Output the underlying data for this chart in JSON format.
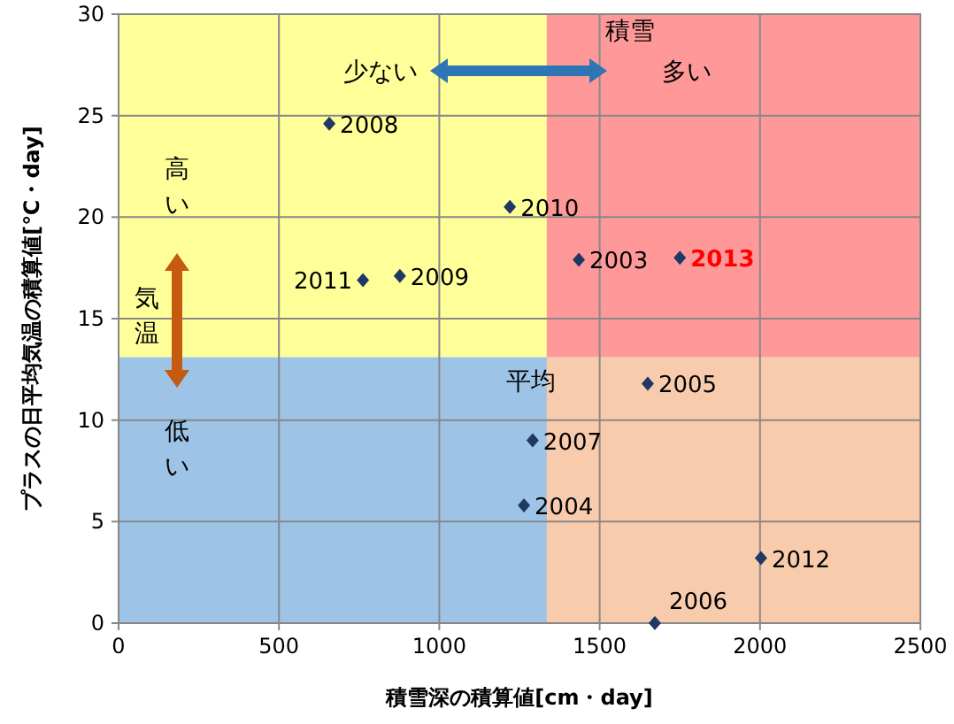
{
  "chart_data": {
    "type": "scatter",
    "xlabel": "積雪深の積算値[cm・day]",
    "ylabel": "プラスの日平均気温の積算値[℃・day]",
    "xlim": [
      0,
      2500
    ],
    "xticks": [
      0,
      500,
      1000,
      1500,
      2000,
      2500
    ],
    "ylim": [
      0,
      30
    ],
    "yticks": [
      0,
      5,
      10,
      15,
      20,
      25,
      30
    ],
    "grid": true,
    "marker": "diamond",
    "bands": [
      {
        "axis": "y",
        "from": 13.1,
        "to": 30,
        "color": "#ffff99"
      },
      {
        "axis": "y",
        "from": 0,
        "to": 13.1,
        "color": "#9dc3e6"
      },
      {
        "axis": "x",
        "from": 1335,
        "to": 2500,
        "color": "#ff9999"
      },
      {
        "axis": "x",
        "from": 1335,
        "to": 2500,
        "color": "#f8cbad"
      }
    ],
    "series": [
      {
        "color": "#1f3864",
        "x": [
          657,
          1220,
          1435,
          762,
          877,
          1650,
          1291,
          1264,
          2003,
          1672,
          1750
        ],
        "values": [
          24.6,
          20.5,
          17.9,
          16.9,
          17.1,
          11.8,
          9.0,
          5.8,
          3.2,
          0,
          18.0
        ]
      }
    ],
    "annotations": [
      "積雪",
      "少ない",
      "多い",
      "高い",
      "気温",
      "低い",
      "平均",
      {
        "text": "2008",
        "x": 657,
        "y": 24.6
      },
      {
        "text": "2010",
        "x": 1220,
        "y": 20.5
      },
      {
        "text": "2003",
        "x": 1435,
        "y": 17.9
      },
      {
        "text": "2011",
        "x": 762,
        "y": 16.9
      },
      {
        "text": "2009",
        "x": 877,
        "y": 17.1
      },
      {
        "text": "2005",
        "x": 1650,
        "y": 11.8
      },
      {
        "text": "2007",
        "x": 1291,
        "y": 9.0
      },
      {
        "text": "2004",
        "x": 1264,
        "y": 5.8
      },
      {
        "text": "2012",
        "x": 2003,
        "y": 3.2
      },
      {
        "text": "2006",
        "x": 1672,
        "y": 0
      },
      {
        "text": "**2013**",
        "x": 1750,
        "y": 18.0
      }
    ]
  }
}
